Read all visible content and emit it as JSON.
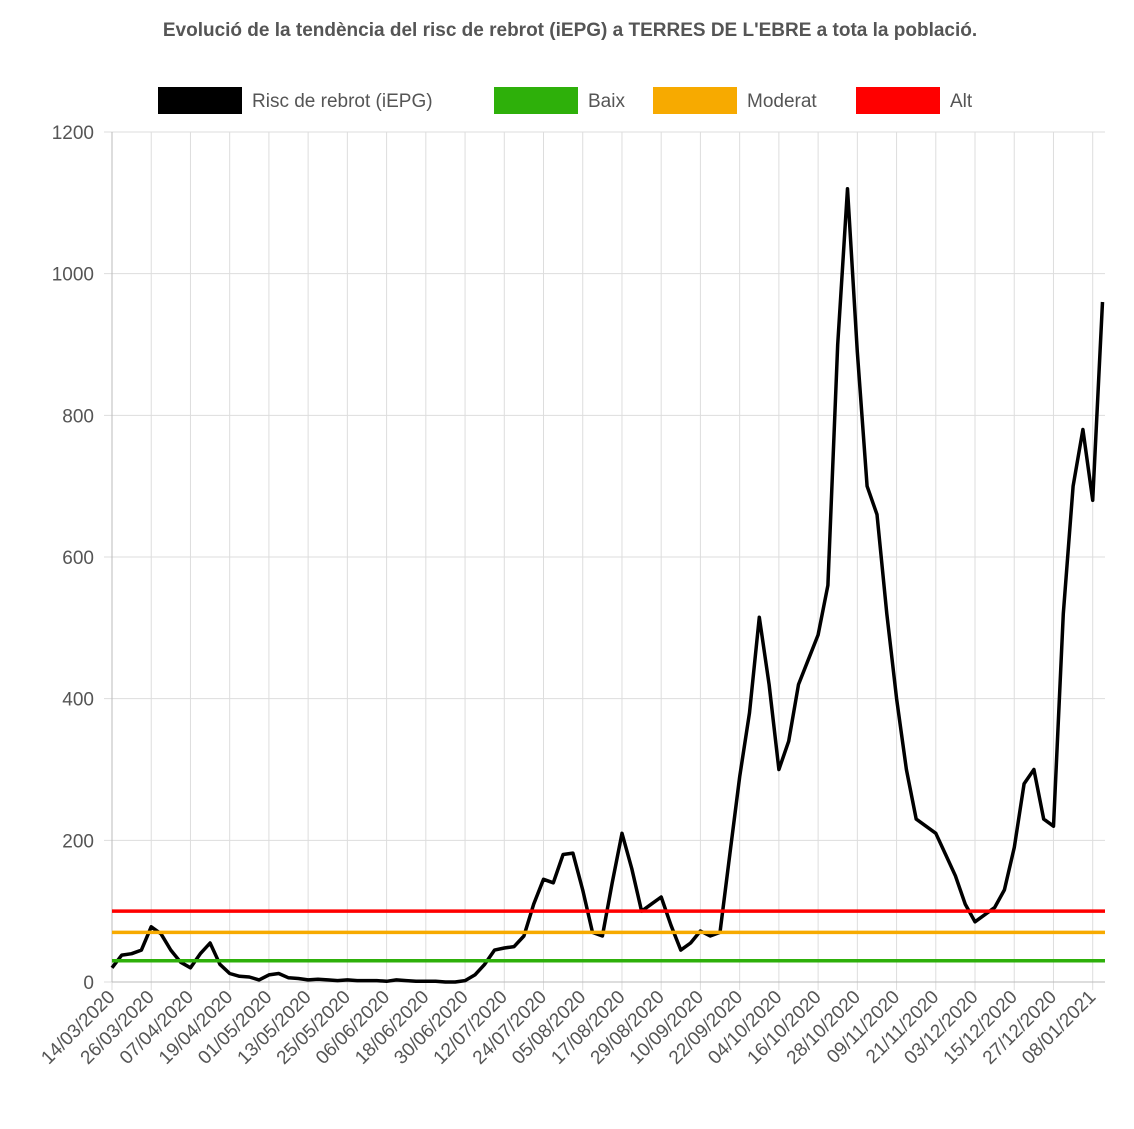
{
  "chart_data": {
    "type": "line",
    "title": "Evolució de la tendència del risc de rebrot (iEPG) a TERRES DE L'EBRE a tota la població.",
    "categories": [
      "14/03/2020",
      null,
      null,
      null,
      "26/03/2020",
      null,
      null,
      null,
      "07/04/2020",
      null,
      null,
      null,
      "19/04/2020",
      null,
      null,
      null,
      "01/05/2020",
      null,
      null,
      null,
      "13/05/2020",
      null,
      null,
      null,
      "25/05/2020",
      null,
      null,
      null,
      "06/06/2020",
      null,
      null,
      null,
      "18/06/2020",
      null,
      null,
      null,
      "30/06/2020",
      null,
      null,
      null,
      "12/07/2020",
      null,
      null,
      null,
      "24/07/2020",
      null,
      null,
      null,
      "05/08/2020",
      null,
      null,
      null,
      "17/08/2020",
      null,
      null,
      null,
      "29/08/2020",
      null,
      null,
      null,
      "10/09/2020",
      null,
      null,
      null,
      "22/09/2020",
      null,
      null,
      null,
      "04/10/2020",
      null,
      null,
      null,
      "16/10/2020",
      null,
      null,
      null,
      "28/10/2020",
      null,
      null,
      null,
      "09/11/2020",
      null,
      null,
      null,
      "21/11/2020",
      null,
      null,
      null,
      "03/12/2020",
      null,
      null,
      null,
      "15/12/2020",
      null,
      null,
      null,
      "27/12/2020",
      null,
      null,
      null,
      "08/01/2021",
      null
    ],
    "series": [
      {
        "name": "Risc de rebrot (iEPG)",
        "color": "#000000",
        "values": [
          20,
          38,
          40,
          45,
          78,
          68,
          45,
          28,
          20,
          40,
          55,
          25,
          12,
          8,
          7,
          3,
          10,
          12,
          6,
          5,
          3,
          4,
          3,
          2,
          3,
          2,
          2,
          2,
          1,
          3,
          2,
          1,
          1,
          1,
          0,
          0,
          2,
          10,
          25,
          45,
          48,
          50,
          65,
          110,
          145,
          140,
          180,
          182,
          130,
          70,
          65,
          140,
          210,
          160,
          100,
          110,
          120,
          80,
          45,
          55,
          72,
          65,
          70,
          180,
          290,
          380,
          515,
          420,
          300,
          340,
          420,
          455,
          490,
          560,
          900,
          1120,
          890,
          700,
          660,
          520,
          400,
          300,
          230,
          220,
          210,
          180,
          150,
          110,
          85,
          95,
          105,
          130,
          190,
          280,
          300,
          230,
          220,
          520,
          700,
          780,
          680,
          960
        ]
      },
      {
        "name": "Baix",
        "color": "#2eb00a",
        "value": 30
      },
      {
        "name": "Moderat",
        "color": "#f7aa00",
        "value": 70
      },
      {
        "name": "Alt",
        "color": "#ff0000",
        "value": 100
      }
    ],
    "ylim": [
      0,
      1200
    ],
    "yticks": [
      0,
      200,
      400,
      600,
      800,
      1000,
      1200
    ],
    "grid": true,
    "legend": "top"
  }
}
